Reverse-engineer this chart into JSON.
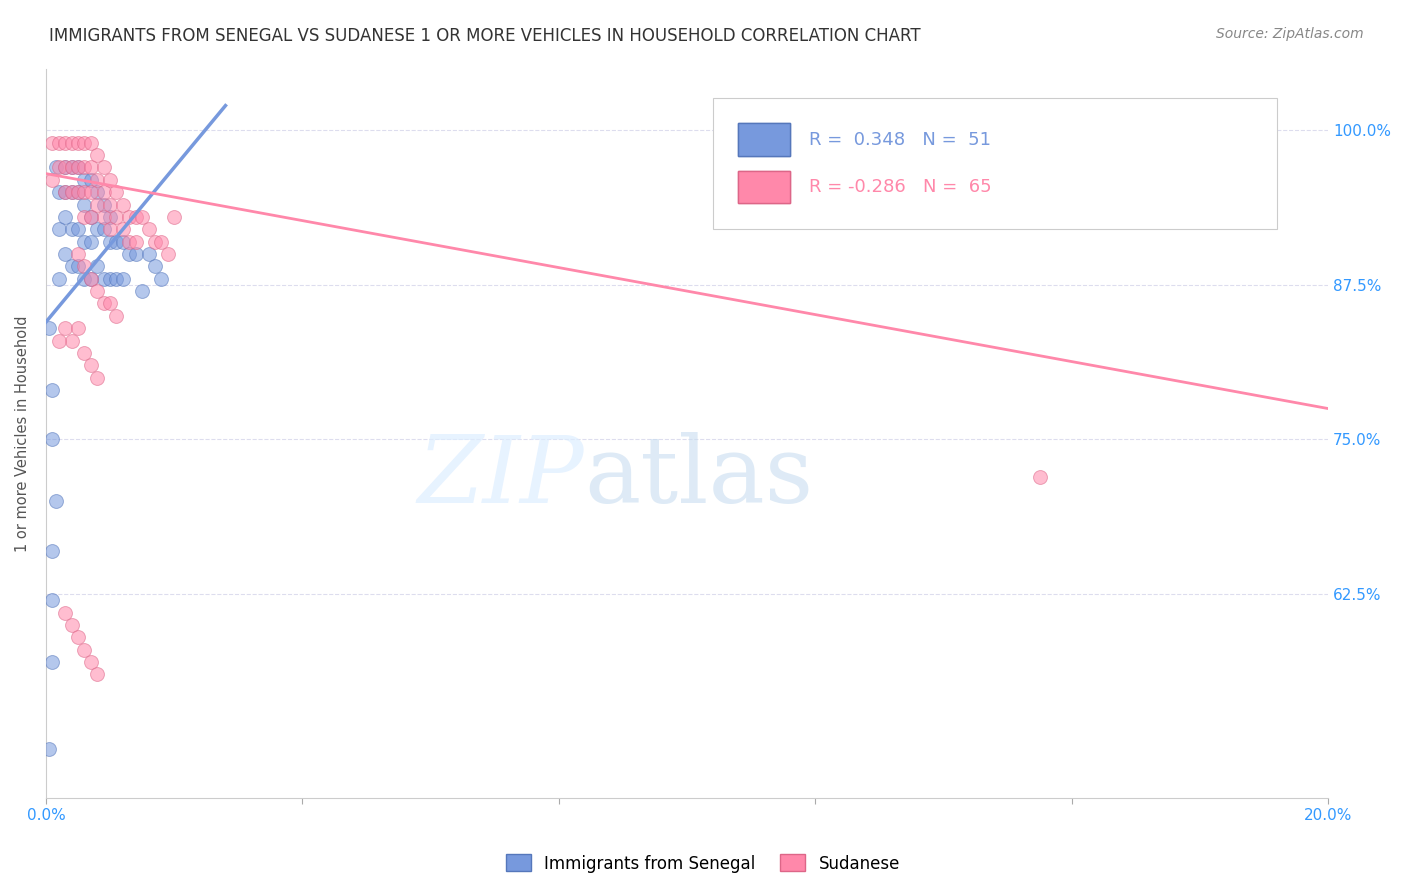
{
  "title": "IMMIGRANTS FROM SENEGAL VS SUDANESE 1 OR MORE VEHICLES IN HOUSEHOLD CORRELATION CHART",
  "source": "Source: ZipAtlas.com",
  "ylabel": "1 or more Vehicles in Household",
  "ytick_labels": [
    "100.0%",
    "87.5%",
    "75.0%",
    "62.5%"
  ],
  "ytick_values": [
    1.0,
    0.875,
    0.75,
    0.625
  ],
  "xlim": [
    0.0,
    0.2
  ],
  "ylim": [
    0.46,
    1.05
  ],
  "blue_scatter_x": [
    0.0005,
    0.001,
    0.001,
    0.001,
    0.0015,
    0.002,
    0.002,
    0.002,
    0.003,
    0.003,
    0.003,
    0.003,
    0.004,
    0.004,
    0.004,
    0.004,
    0.005,
    0.005,
    0.005,
    0.005,
    0.006,
    0.006,
    0.006,
    0.006,
    0.007,
    0.007,
    0.007,
    0.007,
    0.008,
    0.008,
    0.008,
    0.009,
    0.009,
    0.009,
    0.01,
    0.01,
    0.01,
    0.011,
    0.011,
    0.012,
    0.012,
    0.013,
    0.014,
    0.015,
    0.016,
    0.017,
    0.018,
    0.0005,
    0.001,
    0.001,
    0.0015
  ],
  "blue_scatter_y": [
    0.5,
    0.66,
    0.62,
    0.57,
    0.97,
    0.95,
    0.92,
    0.88,
    0.97,
    0.95,
    0.93,
    0.9,
    0.97,
    0.95,
    0.92,
    0.89,
    0.97,
    0.95,
    0.92,
    0.89,
    0.96,
    0.94,
    0.91,
    0.88,
    0.96,
    0.93,
    0.91,
    0.88,
    0.95,
    0.92,
    0.89,
    0.94,
    0.92,
    0.88,
    0.93,
    0.91,
    0.88,
    0.91,
    0.88,
    0.91,
    0.88,
    0.9,
    0.9,
    0.87,
    0.9,
    0.89,
    0.88,
    0.84,
    0.79,
    0.75,
    0.7
  ],
  "pink_scatter_x": [
    0.001,
    0.001,
    0.002,
    0.002,
    0.003,
    0.003,
    0.003,
    0.004,
    0.004,
    0.004,
    0.005,
    0.005,
    0.005,
    0.006,
    0.006,
    0.006,
    0.006,
    0.007,
    0.007,
    0.007,
    0.007,
    0.008,
    0.008,
    0.008,
    0.009,
    0.009,
    0.009,
    0.01,
    0.01,
    0.01,
    0.011,
    0.011,
    0.012,
    0.012,
    0.013,
    0.013,
    0.014,
    0.014,
    0.015,
    0.016,
    0.017,
    0.018,
    0.019,
    0.02,
    0.005,
    0.006,
    0.007,
    0.008,
    0.009,
    0.01,
    0.011,
    0.003,
    0.004,
    0.002,
    0.006,
    0.007,
    0.008,
    0.003,
    0.004,
    0.005,
    0.006,
    0.007,
    0.008,
    0.155,
    0.005
  ],
  "pink_scatter_y": [
    0.99,
    0.96,
    0.99,
    0.97,
    0.99,
    0.97,
    0.95,
    0.99,
    0.97,
    0.95,
    0.99,
    0.97,
    0.95,
    0.99,
    0.97,
    0.95,
    0.93,
    0.99,
    0.97,
    0.95,
    0.93,
    0.98,
    0.96,
    0.94,
    0.97,
    0.95,
    0.93,
    0.96,
    0.94,
    0.92,
    0.95,
    0.93,
    0.94,
    0.92,
    0.93,
    0.91,
    0.93,
    0.91,
    0.93,
    0.92,
    0.91,
    0.91,
    0.9,
    0.93,
    0.9,
    0.89,
    0.88,
    0.87,
    0.86,
    0.86,
    0.85,
    0.84,
    0.83,
    0.83,
    0.82,
    0.81,
    0.8,
    0.61,
    0.6,
    0.59,
    0.58,
    0.57,
    0.56,
    0.72,
    0.84
  ],
  "blue_line_x": [
    0.0,
    0.028
  ],
  "blue_line_y": [
    0.845,
    1.02
  ],
  "pink_line_x": [
    0.0,
    0.2
  ],
  "pink_line_y": [
    0.965,
    0.775
  ],
  "scatter_size": 100,
  "scatter_alpha": 0.55,
  "blue_color": "#7799dd",
  "pink_color": "#ff88aa",
  "blue_edge_color": "#5577bb",
  "pink_edge_color": "#dd6688",
  "title_fontsize": 12,
  "axis_label_color": "#3399ff",
  "grid_color": "#ddddee",
  "background_color": "#ffffff",
  "legend_r_blue": "R =  0.348",
  "legend_n_blue": "N =  51",
  "legend_r_pink": "R = -0.286",
  "legend_n_pink": "N =  65"
}
